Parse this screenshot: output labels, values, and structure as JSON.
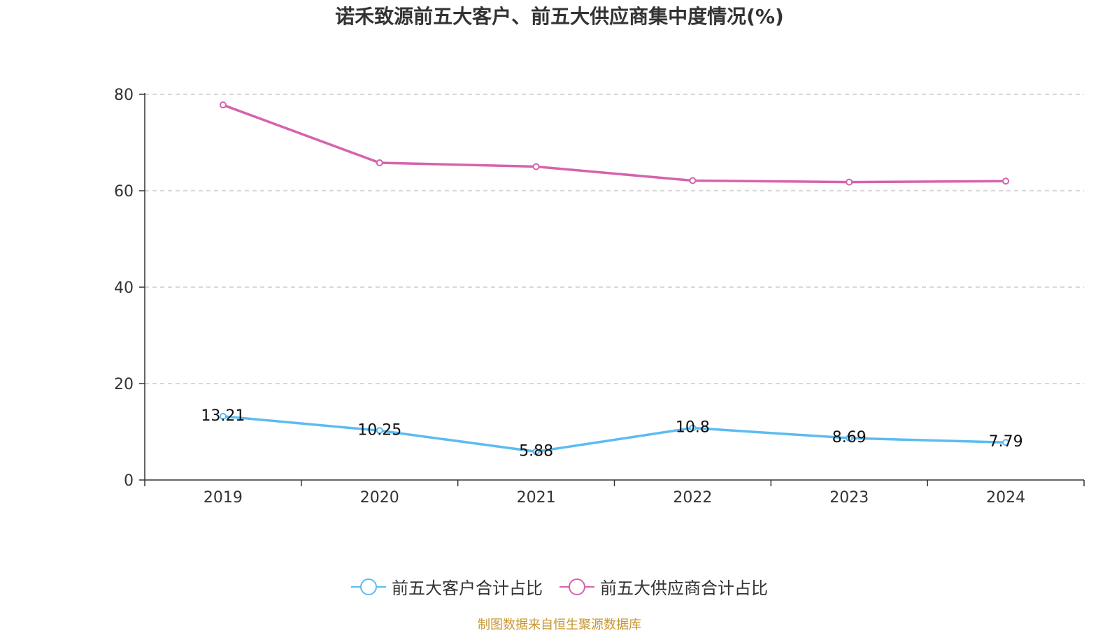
{
  "title": "诺禾致源前五大客户、前五大供应商集中度情况(%)",
  "source": "制图数据来自恒生聚源数据库",
  "chart_data": {
    "type": "line",
    "categories": [
      "2019",
      "2020",
      "2021",
      "2022",
      "2023",
      "2024"
    ],
    "ylim": [
      0,
      80
    ],
    "yticks": [
      0,
      20,
      40,
      60,
      80
    ],
    "grid": true,
    "legend_position": "bottom",
    "series": [
      {
        "name": "前五大客户合计占比",
        "color": "#5bbcf0",
        "labeled": true,
        "values": [
          13.21,
          10.25,
          5.88,
          10.8,
          8.69,
          7.79
        ]
      },
      {
        "name": "前五大供应商合计占比",
        "color": "#d563ad",
        "labeled": false,
        "values": [
          77.8,
          65.8,
          65.0,
          62.1,
          61.8,
          62.0
        ]
      }
    ]
  }
}
